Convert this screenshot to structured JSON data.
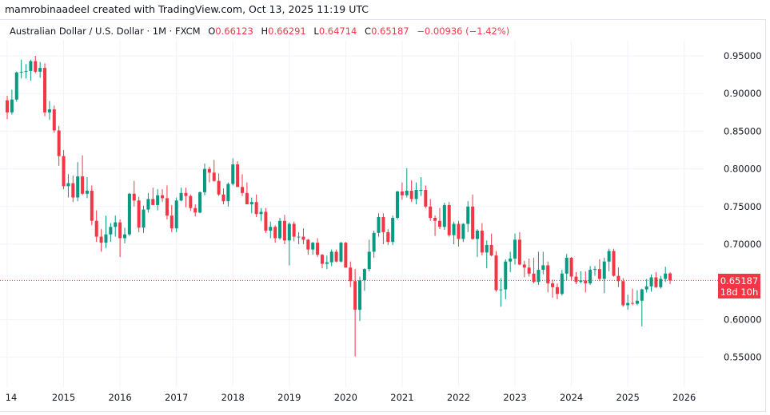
{
  "header": {
    "credit": "mamrobinaadeel created with TradingView.com, Oct 13, 2025 11:19 UTC"
  },
  "legend": {
    "symbol": "Australian Dollar / U.S. Dollar · 1M · FXCM",
    "o_label": "O",
    "o": "0.66123",
    "h_label": "H",
    "h": "0.66291",
    "l_label": "L",
    "l": "0.64714",
    "c_label": "C",
    "c": "0.65187",
    "change": "−0.00936 (−1.42%)"
  },
  "price_tag": {
    "price": "0.65187",
    "countdown": "18d 10h"
  },
  "colors": {
    "up": "#089981",
    "down": "#f23645",
    "grid": "#f0f3fa",
    "price_line": "#f23645"
  },
  "chart_data": {
    "type": "candlestick",
    "interval": "1M",
    "start": "2014-01",
    "end": "2025-10",
    "ylim": [
      0.53,
      0.98
    ],
    "y_ticks": [
      "0.95000",
      "0.90000",
      "0.85000",
      "0.80000",
      "0.75000",
      "0.70000",
      "0.60000",
      "0.55000"
    ],
    "x_ticks": [
      "14",
      "2015",
      "2016",
      "2017",
      "2018",
      "2019",
      "2020",
      "2021",
      "2022",
      "2023",
      "2024",
      "2025",
      "2026"
    ],
    "grid": true,
    "last_price": 0.65187,
    "ohlc": [
      [
        0.891,
        0.897,
        0.866,
        0.875
      ],
      [
        0.875,
        0.905,
        0.872,
        0.892
      ],
      [
        0.892,
        0.929,
        0.889,
        0.928
      ],
      [
        0.928,
        0.945,
        0.92,
        0.929
      ],
      [
        0.929,
        0.939,
        0.92,
        0.93
      ],
      [
        0.93,
        0.945,
        0.917,
        0.943
      ],
      [
        0.943,
        0.95,
        0.927,
        0.929
      ],
      [
        0.929,
        0.942,
        0.921,
        0.934
      ],
      [
        0.934,
        0.94,
        0.87,
        0.875
      ],
      [
        0.875,
        0.89,
        0.865,
        0.879
      ],
      [
        0.879,
        0.884,
        0.848,
        0.851
      ],
      [
        0.851,
        0.857,
        0.804,
        0.817
      ],
      [
        0.817,
        0.825,
        0.773,
        0.777
      ],
      [
        0.777,
        0.793,
        0.762,
        0.781
      ],
      [
        0.781,
        0.791,
        0.756,
        0.762
      ],
      [
        0.762,
        0.809,
        0.757,
        0.79
      ],
      [
        0.79,
        0.818,
        0.765,
        0.767
      ],
      [
        0.767,
        0.789,
        0.761,
        0.771
      ],
      [
        0.771,
        0.778,
        0.725,
        0.731
      ],
      [
        0.731,
        0.745,
        0.703,
        0.71
      ],
      [
        0.71,
        0.72,
        0.69,
        0.702
      ],
      [
        0.702,
        0.738,
        0.695,
        0.713
      ],
      [
        0.713,
        0.728,
        0.703,
        0.723
      ],
      [
        0.723,
        0.738,
        0.71,
        0.729
      ],
      [
        0.729,
        0.733,
        0.683,
        0.708
      ],
      [
        0.708,
        0.722,
        0.701,
        0.713
      ],
      [
        0.713,
        0.768,
        0.711,
        0.767
      ],
      [
        0.767,
        0.784,
        0.75,
        0.758
      ],
      [
        0.758,
        0.763,
        0.716,
        0.722
      ],
      [
        0.722,
        0.751,
        0.715,
        0.746
      ],
      [
        0.746,
        0.768,
        0.742,
        0.76
      ],
      [
        0.76,
        0.775,
        0.752,
        0.752
      ],
      [
        0.752,
        0.773,
        0.745,
        0.765
      ],
      [
        0.765,
        0.773,
        0.756,
        0.761
      ],
      [
        0.761,
        0.778,
        0.733,
        0.738
      ],
      [
        0.738,
        0.752,
        0.716,
        0.721
      ],
      [
        0.721,
        0.762,
        0.716,
        0.758
      ],
      [
        0.758,
        0.775,
        0.757,
        0.768
      ],
      [
        0.768,
        0.775,
        0.749,
        0.764
      ],
      [
        0.764,
        0.766,
        0.744,
        0.748
      ],
      [
        0.748,
        0.753,
        0.737,
        0.742
      ],
      [
        0.742,
        0.77,
        0.741,
        0.769
      ],
      [
        0.769,
        0.807,
        0.765,
        0.8
      ],
      [
        0.8,
        0.803,
        0.782,
        0.795
      ],
      [
        0.795,
        0.812,
        0.783,
        0.784
      ],
      [
        0.784,
        0.794,
        0.764,
        0.766
      ],
      [
        0.766,
        0.774,
        0.753,
        0.757
      ],
      [
        0.757,
        0.782,
        0.75,
        0.78
      ],
      [
        0.78,
        0.814,
        0.778,
        0.806
      ],
      [
        0.806,
        0.81,
        0.776,
        0.776
      ],
      [
        0.776,
        0.793,
        0.764,
        0.768
      ],
      [
        0.768,
        0.782,
        0.753,
        0.753
      ],
      [
        0.753,
        0.762,
        0.741,
        0.756
      ],
      [
        0.756,
        0.766,
        0.736,
        0.74
      ],
      [
        0.74,
        0.748,
        0.731,
        0.743
      ],
      [
        0.743,
        0.748,
        0.715,
        0.718
      ],
      [
        0.718,
        0.73,
        0.708,
        0.723
      ],
      [
        0.723,
        0.725,
        0.702,
        0.708
      ],
      [
        0.708,
        0.735,
        0.706,
        0.731
      ],
      [
        0.731,
        0.739,
        0.7,
        0.705
      ],
      [
        0.705,
        0.729,
        0.672,
        0.727
      ],
      [
        0.727,
        0.73,
        0.704,
        0.71
      ],
      [
        0.71,
        0.716,
        0.7,
        0.71
      ],
      [
        0.71,
        0.721,
        0.7,
        0.706
      ],
      [
        0.706,
        0.707,
        0.686,
        0.693
      ],
      [
        0.693,
        0.703,
        0.686,
        0.702
      ],
      [
        0.702,
        0.708,
        0.683,
        0.686
      ],
      [
        0.686,
        0.687,
        0.668,
        0.674
      ],
      [
        0.674,
        0.685,
        0.667,
        0.676
      ],
      [
        0.676,
        0.693,
        0.671,
        0.69
      ],
      [
        0.69,
        0.693,
        0.676,
        0.677
      ],
      [
        0.677,
        0.703,
        0.676,
        0.702
      ],
      [
        0.702,
        0.703,
        0.669,
        0.669
      ],
      [
        0.669,
        0.677,
        0.643,
        0.651
      ],
      [
        0.651,
        0.667,
        0.551,
        0.613
      ],
      [
        0.613,
        0.657,
        0.598,
        0.652
      ],
      [
        0.652,
        0.668,
        0.638,
        0.667
      ],
      [
        0.667,
        0.706,
        0.664,
        0.69
      ],
      [
        0.69,
        0.718,
        0.682,
        0.715
      ],
      [
        0.715,
        0.741,
        0.71,
        0.736
      ],
      [
        0.736,
        0.741,
        0.7,
        0.716
      ],
      [
        0.716,
        0.72,
        0.699,
        0.703
      ],
      [
        0.703,
        0.738,
        0.699,
        0.735
      ],
      [
        0.735,
        0.771,
        0.733,
        0.77
      ],
      [
        0.77,
        0.782,
        0.759,
        0.765
      ],
      [
        0.765,
        0.801,
        0.762,
        0.771
      ],
      [
        0.771,
        0.785,
        0.756,
        0.76
      ],
      [
        0.76,
        0.782,
        0.753,
        0.772
      ],
      [
        0.772,
        0.789,
        0.764,
        0.772
      ],
      [
        0.772,
        0.778,
        0.748,
        0.75
      ],
      [
        0.75,
        0.76,
        0.731,
        0.735
      ],
      [
        0.735,
        0.738,
        0.711,
        0.731
      ],
      [
        0.731,
        0.748,
        0.72,
        0.723
      ],
      [
        0.723,
        0.755,
        0.719,
        0.752
      ],
      [
        0.752,
        0.756,
        0.71,
        0.712
      ],
      [
        0.712,
        0.73,
        0.7,
        0.727
      ],
      [
        0.727,
        0.731,
        0.697,
        0.707
      ],
      [
        0.707,
        0.728,
        0.703,
        0.727
      ],
      [
        0.727,
        0.757,
        0.716,
        0.75
      ],
      [
        0.75,
        0.766,
        0.706,
        0.707
      ],
      [
        0.707,
        0.72,
        0.683,
        0.718
      ],
      [
        0.718,
        0.728,
        0.685,
        0.689
      ],
      [
        0.689,
        0.705,
        0.668,
        0.699
      ],
      [
        0.699,
        0.714,
        0.684,
        0.685
      ],
      [
        0.685,
        0.691,
        0.637,
        0.639
      ],
      [
        0.639,
        0.655,
        0.617,
        0.64
      ],
      [
        0.64,
        0.68,
        0.627,
        0.677
      ],
      [
        0.677,
        0.69,
        0.663,
        0.681
      ],
      [
        0.681,
        0.714,
        0.673,
        0.706
      ],
      [
        0.706,
        0.716,
        0.672,
        0.673
      ],
      [
        0.673,
        0.678,
        0.656,
        0.669
      ],
      [
        0.669,
        0.681,
        0.657,
        0.661
      ],
      [
        0.661,
        0.682,
        0.648,
        0.65
      ],
      [
        0.65,
        0.69,
        0.646,
        0.666
      ],
      [
        0.666,
        0.69,
        0.66,
        0.672
      ],
      [
        0.672,
        0.677,
        0.636,
        0.648
      ],
      [
        0.648,
        0.653,
        0.629,
        0.643
      ],
      [
        0.643,
        0.648,
        0.627,
        0.634
      ],
      [
        0.634,
        0.666,
        0.632,
        0.661
      ],
      [
        0.661,
        0.687,
        0.652,
        0.682
      ],
      [
        0.682,
        0.683,
        0.652,
        0.657
      ],
      [
        0.657,
        0.663,
        0.647,
        0.65
      ],
      [
        0.65,
        0.664,
        0.648,
        0.652
      ],
      [
        0.652,
        0.664,
        0.636,
        0.648
      ],
      [
        0.648,
        0.671,
        0.646,
        0.666
      ],
      [
        0.666,
        0.671,
        0.658,
        0.667
      ],
      [
        0.667,
        0.68,
        0.651,
        0.654
      ],
      [
        0.654,
        0.682,
        0.635,
        0.677
      ],
      [
        0.677,
        0.694,
        0.664,
        0.691
      ],
      [
        0.691,
        0.694,
        0.657,
        0.658
      ],
      [
        0.658,
        0.669,
        0.643,
        0.651
      ],
      [
        0.651,
        0.655,
        0.617,
        0.619
      ],
      [
        0.619,
        0.633,
        0.613,
        0.622
      ],
      [
        0.622,
        0.641,
        0.619,
        0.621
      ],
      [
        0.621,
        0.639,
        0.619,
        0.625
      ],
      [
        0.625,
        0.641,
        0.591,
        0.64
      ],
      [
        0.64,
        0.654,
        0.636,
        0.644
      ],
      [
        0.644,
        0.66,
        0.637,
        0.656
      ],
      [
        0.656,
        0.663,
        0.642,
        0.643
      ],
      [
        0.643,
        0.658,
        0.641,
        0.654
      ],
      [
        0.654,
        0.67,
        0.65,
        0.661
      ],
      [
        0.66123,
        0.66291,
        0.64714,
        0.65187
      ]
    ]
  }
}
